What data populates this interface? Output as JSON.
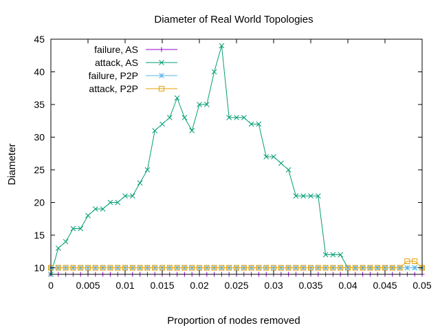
{
  "chart_data": {
    "type": "line",
    "title": "Diameter of Real World Topologies",
    "xlabel": "Proportion of nodes removed",
    "ylabel": "Diameter",
    "xlim": [
      0,
      0.05
    ],
    "ylim": [
      9,
      45
    ],
    "xticks": [
      {
        "v": 0,
        "label": "0"
      },
      {
        "v": 0.005,
        "label": "0.005"
      },
      {
        "v": 0.01,
        "label": "0.01"
      },
      {
        "v": 0.015,
        "label": "0.015"
      },
      {
        "v": 0.02,
        "label": "0.02"
      },
      {
        "v": 0.025,
        "label": "0.025"
      },
      {
        "v": 0.03,
        "label": "0.03"
      },
      {
        "v": 0.035,
        "label": "0.035"
      },
      {
        "v": 0.04,
        "label": "0.04"
      },
      {
        "v": 0.045,
        "label": "0.045"
      },
      {
        "v": 0.05,
        "label": "0.05"
      }
    ],
    "yticks": [
      {
        "v": 10,
        "label": "10"
      },
      {
        "v": 15,
        "label": "15"
      },
      {
        "v": 20,
        "label": "20"
      },
      {
        "v": 25,
        "label": "25"
      },
      {
        "v": 30,
        "label": "30"
      },
      {
        "v": 35,
        "label": "35"
      },
      {
        "v": 40,
        "label": "40"
      },
      {
        "v": 45,
        "label": "45"
      }
    ],
    "grid": false,
    "legend_position": "top-left",
    "x": [
      0,
      0.001,
      0.002,
      0.003,
      0.004,
      0.005,
      0.006,
      0.007,
      0.008,
      0.009,
      0.01,
      0.011,
      0.012,
      0.013,
      0.014,
      0.015,
      0.016,
      0.017,
      0.018,
      0.019,
      0.02,
      0.021,
      0.022,
      0.023,
      0.024,
      0.025,
      0.026,
      0.027,
      0.028,
      0.029,
      0.03,
      0.031,
      0.032,
      0.033,
      0.034,
      0.035,
      0.036,
      0.037,
      0.038,
      0.039,
      0.04,
      0.041,
      0.042,
      0.043,
      0.044,
      0.045,
      0.046,
      0.047,
      0.048,
      0.049,
      0.05
    ],
    "series": [
      {
        "name": "failure, AS",
        "color": "#9400d3",
        "marker": "plus",
        "values": [
          9,
          9,
          9,
          9,
          9,
          9,
          9,
          9,
          9,
          9,
          9,
          9,
          9,
          9,
          9,
          9,
          9,
          9,
          9,
          9,
          9,
          9,
          9,
          9,
          9,
          9,
          9,
          9,
          9,
          9,
          9,
          9,
          9,
          9,
          9,
          9,
          9,
          9,
          9,
          9,
          9,
          9,
          9,
          9,
          9,
          9,
          9,
          9,
          9,
          9,
          9
        ]
      },
      {
        "name": "attack, AS",
        "color": "#009e73",
        "marker": "cross",
        "values": [
          9,
          13,
          14,
          16,
          16,
          18,
          19,
          19,
          20,
          20,
          21,
          21,
          23,
          25,
          31,
          32,
          33,
          36,
          33,
          31,
          35,
          35,
          40,
          44,
          33,
          33,
          33,
          32,
          32,
          27,
          27,
          26,
          25,
          21,
          21,
          21,
          21,
          12,
          12,
          12,
          10,
          10,
          10,
          10,
          10,
          10,
          10,
          10,
          10,
          10,
          10
        ]
      },
      {
        "name": "failure, P2P",
        "color": "#56b4e9",
        "marker": "star",
        "values": [
          10,
          10,
          10,
          10,
          10,
          10,
          10,
          10,
          10,
          10,
          10,
          10,
          10,
          10,
          10,
          10,
          10,
          10,
          10,
          10,
          10,
          10,
          10,
          10,
          10,
          10,
          10,
          10,
          10,
          10,
          10,
          10,
          10,
          10,
          10,
          10,
          10,
          10,
          10,
          10,
          10,
          10,
          10,
          10,
          10,
          10,
          10,
          10,
          10,
          10,
          10
        ]
      },
      {
        "name": "attack, P2P",
        "color": "#e69f00",
        "marker": "square",
        "values": [
          10,
          10,
          10,
          10,
          10,
          10,
          10,
          10,
          10,
          10,
          10,
          10,
          10,
          10,
          10,
          10,
          10,
          10,
          10,
          10,
          10,
          10,
          10,
          10,
          10,
          10,
          10,
          10,
          10,
          10,
          10,
          10,
          10,
          10,
          10,
          10,
          10,
          10,
          10,
          10,
          10,
          10,
          10,
          10,
          10,
          10,
          10,
          10,
          11,
          11,
          10
        ]
      }
    ]
  }
}
